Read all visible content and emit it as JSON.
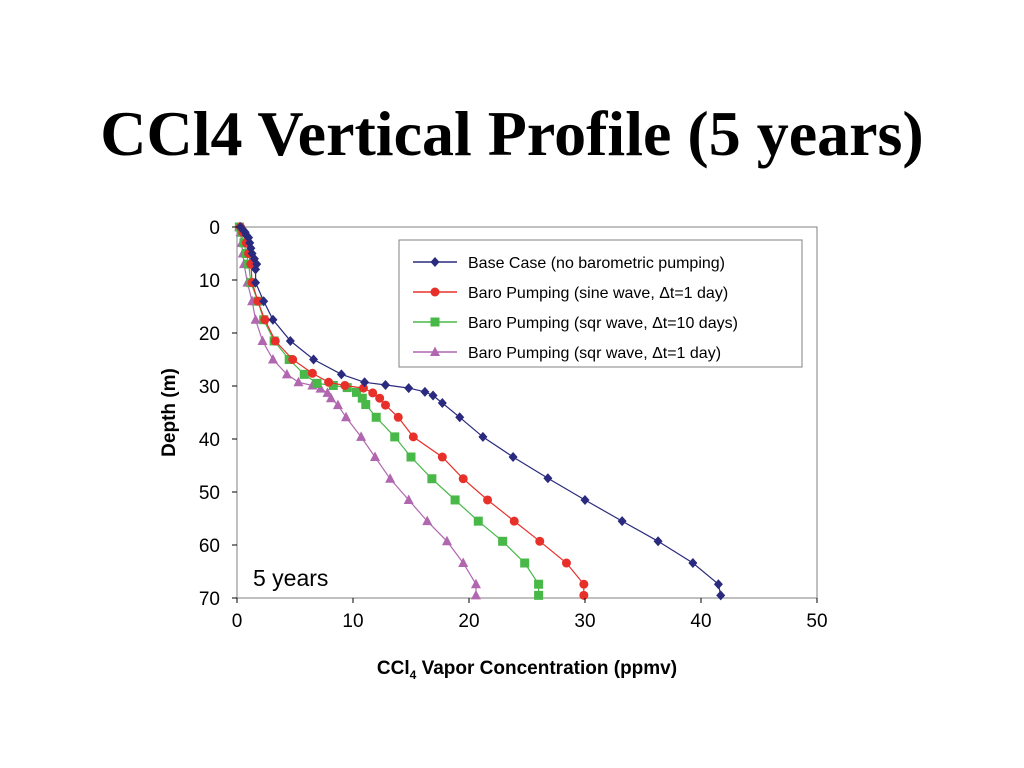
{
  "slide": {
    "title": "CCl4 Vertical Profile (5 years)"
  },
  "chart_data": {
    "type": "line",
    "xlabel": "CCl4 Vapor Concentration (ppmv)",
    "xlabel_main": "CCl",
    "xlabel_sub": "4",
    "xlabel_rest": " Vapor Concentration (ppmv)",
    "ylabel": "Depth (m)",
    "xlim": [
      0,
      50
    ],
    "ylim": [
      0,
      70
    ],
    "y_inverted": true,
    "x_ticks": [
      0,
      10,
      20,
      30,
      40,
      50
    ],
    "y_ticks": [
      0,
      10,
      20,
      30,
      40,
      50,
      60,
      70
    ],
    "grid": false,
    "legend_position": "top-right",
    "annotation": "5 years",
    "series": [
      {
        "name": "Base Case (no barometric pumping)",
        "color": "#2a2a7e",
        "marker": "diamond",
        "points": [
          [
            0.3,
            0
          ],
          [
            0.5,
            0.5
          ],
          [
            0.7,
            1
          ],
          [
            0.8,
            1.5
          ],
          [
            1.0,
            2
          ],
          [
            1.1,
            3
          ],
          [
            1.2,
            4
          ],
          [
            1.3,
            5
          ],
          [
            1.5,
            6
          ],
          [
            1.7,
            7
          ],
          [
            1.6,
            8
          ],
          [
            1.6,
            10.5
          ],
          [
            2.3,
            14
          ],
          [
            3.1,
            17.5
          ],
          [
            4.6,
            21.5
          ],
          [
            6.6,
            25
          ],
          [
            9.0,
            27.8
          ],
          [
            11.0,
            29.3
          ],
          [
            12.8,
            29.8
          ],
          [
            14.8,
            30.4
          ],
          [
            16.2,
            31.1
          ],
          [
            16.9,
            31.8
          ],
          [
            17.7,
            33.2
          ],
          [
            19.2,
            35.9
          ],
          [
            21.2,
            39.6
          ],
          [
            23.8,
            43.4
          ],
          [
            26.8,
            47.4
          ],
          [
            30.0,
            51.5
          ],
          [
            33.2,
            55.5
          ],
          [
            36.3,
            59.3
          ],
          [
            39.3,
            63.4
          ],
          [
            41.5,
            67.4
          ],
          [
            41.7,
            69.5
          ]
        ]
      },
      {
        "name": "Baro Pumping (sine wave, Δt=1 day)",
        "color": "#e8302a",
        "marker": "circle",
        "points": [
          [
            0.3,
            0
          ],
          [
            0.5,
            1
          ],
          [
            0.8,
            3
          ],
          [
            1.0,
            5
          ],
          [
            1.2,
            7
          ],
          [
            1.3,
            10.5
          ],
          [
            1.8,
            14
          ],
          [
            2.4,
            17.5
          ],
          [
            3.3,
            21.5
          ],
          [
            4.8,
            25
          ],
          [
            6.5,
            27.6
          ],
          [
            7.9,
            29.3
          ],
          [
            9.3,
            29.9
          ],
          [
            10.9,
            30.4
          ],
          [
            11.7,
            31.3
          ],
          [
            12.3,
            32.3
          ],
          [
            12.8,
            33.6
          ],
          [
            13.9,
            35.9
          ],
          [
            15.2,
            39.6
          ],
          [
            17.7,
            43.4
          ],
          [
            19.5,
            47.5
          ],
          [
            21.6,
            51.5
          ],
          [
            23.9,
            55.5
          ],
          [
            26.1,
            59.3
          ],
          [
            28.4,
            63.4
          ],
          [
            29.9,
            67.4
          ],
          [
            29.9,
            69.5
          ]
        ]
      },
      {
        "name": "Baro Pumping (sqr  wave, Δt=10 days)",
        "color": "#48b848",
        "marker": "square",
        "points": [
          [
            0.2,
            0
          ],
          [
            0.4,
            1
          ],
          [
            0.6,
            3
          ],
          [
            0.8,
            5
          ],
          [
            1.0,
            7
          ],
          [
            1.2,
            10.5
          ],
          [
            1.8,
            14
          ],
          [
            2.3,
            17.5
          ],
          [
            3.2,
            21.5
          ],
          [
            4.5,
            25
          ],
          [
            5.8,
            27.8
          ],
          [
            6.9,
            29.5
          ],
          [
            8.3,
            29.9
          ],
          [
            9.5,
            30.3
          ],
          [
            10.3,
            31.2
          ],
          [
            10.8,
            32.3
          ],
          [
            11.1,
            33.5
          ],
          [
            12.0,
            35.9
          ],
          [
            13.6,
            39.6
          ],
          [
            15.0,
            43.4
          ],
          [
            16.8,
            47.5
          ],
          [
            18.8,
            51.5
          ],
          [
            20.8,
            55.5
          ],
          [
            22.9,
            59.3
          ],
          [
            24.8,
            63.4
          ],
          [
            26.0,
            67.4
          ],
          [
            26.0,
            69.5
          ]
        ]
      },
      {
        "name": "Baro Pumping (sqr  wave, Δt=1 day)",
        "color": "#b067b0",
        "marker": "triangle",
        "points": [
          [
            0.2,
            0
          ],
          [
            0.3,
            1
          ],
          [
            0.4,
            3
          ],
          [
            0.5,
            5
          ],
          [
            0.6,
            7
          ],
          [
            0.9,
            10.5
          ],
          [
            1.3,
            14
          ],
          [
            1.6,
            17.5
          ],
          [
            2.2,
            21.5
          ],
          [
            3.1,
            25
          ],
          [
            4.3,
            27.8
          ],
          [
            5.3,
            29.3
          ],
          [
            6.5,
            29.9
          ],
          [
            7.2,
            30.5
          ],
          [
            7.8,
            31.3
          ],
          [
            8.1,
            32.3
          ],
          [
            8.7,
            33.6
          ],
          [
            9.4,
            35.9
          ],
          [
            10.7,
            39.6
          ],
          [
            11.9,
            43.4
          ],
          [
            13.2,
            47.5
          ],
          [
            14.8,
            51.5
          ],
          [
            16.4,
            55.5
          ],
          [
            18.1,
            59.3
          ],
          [
            19.5,
            63.4
          ],
          [
            20.6,
            67.4
          ],
          [
            20.6,
            69.5
          ]
        ]
      }
    ]
  }
}
